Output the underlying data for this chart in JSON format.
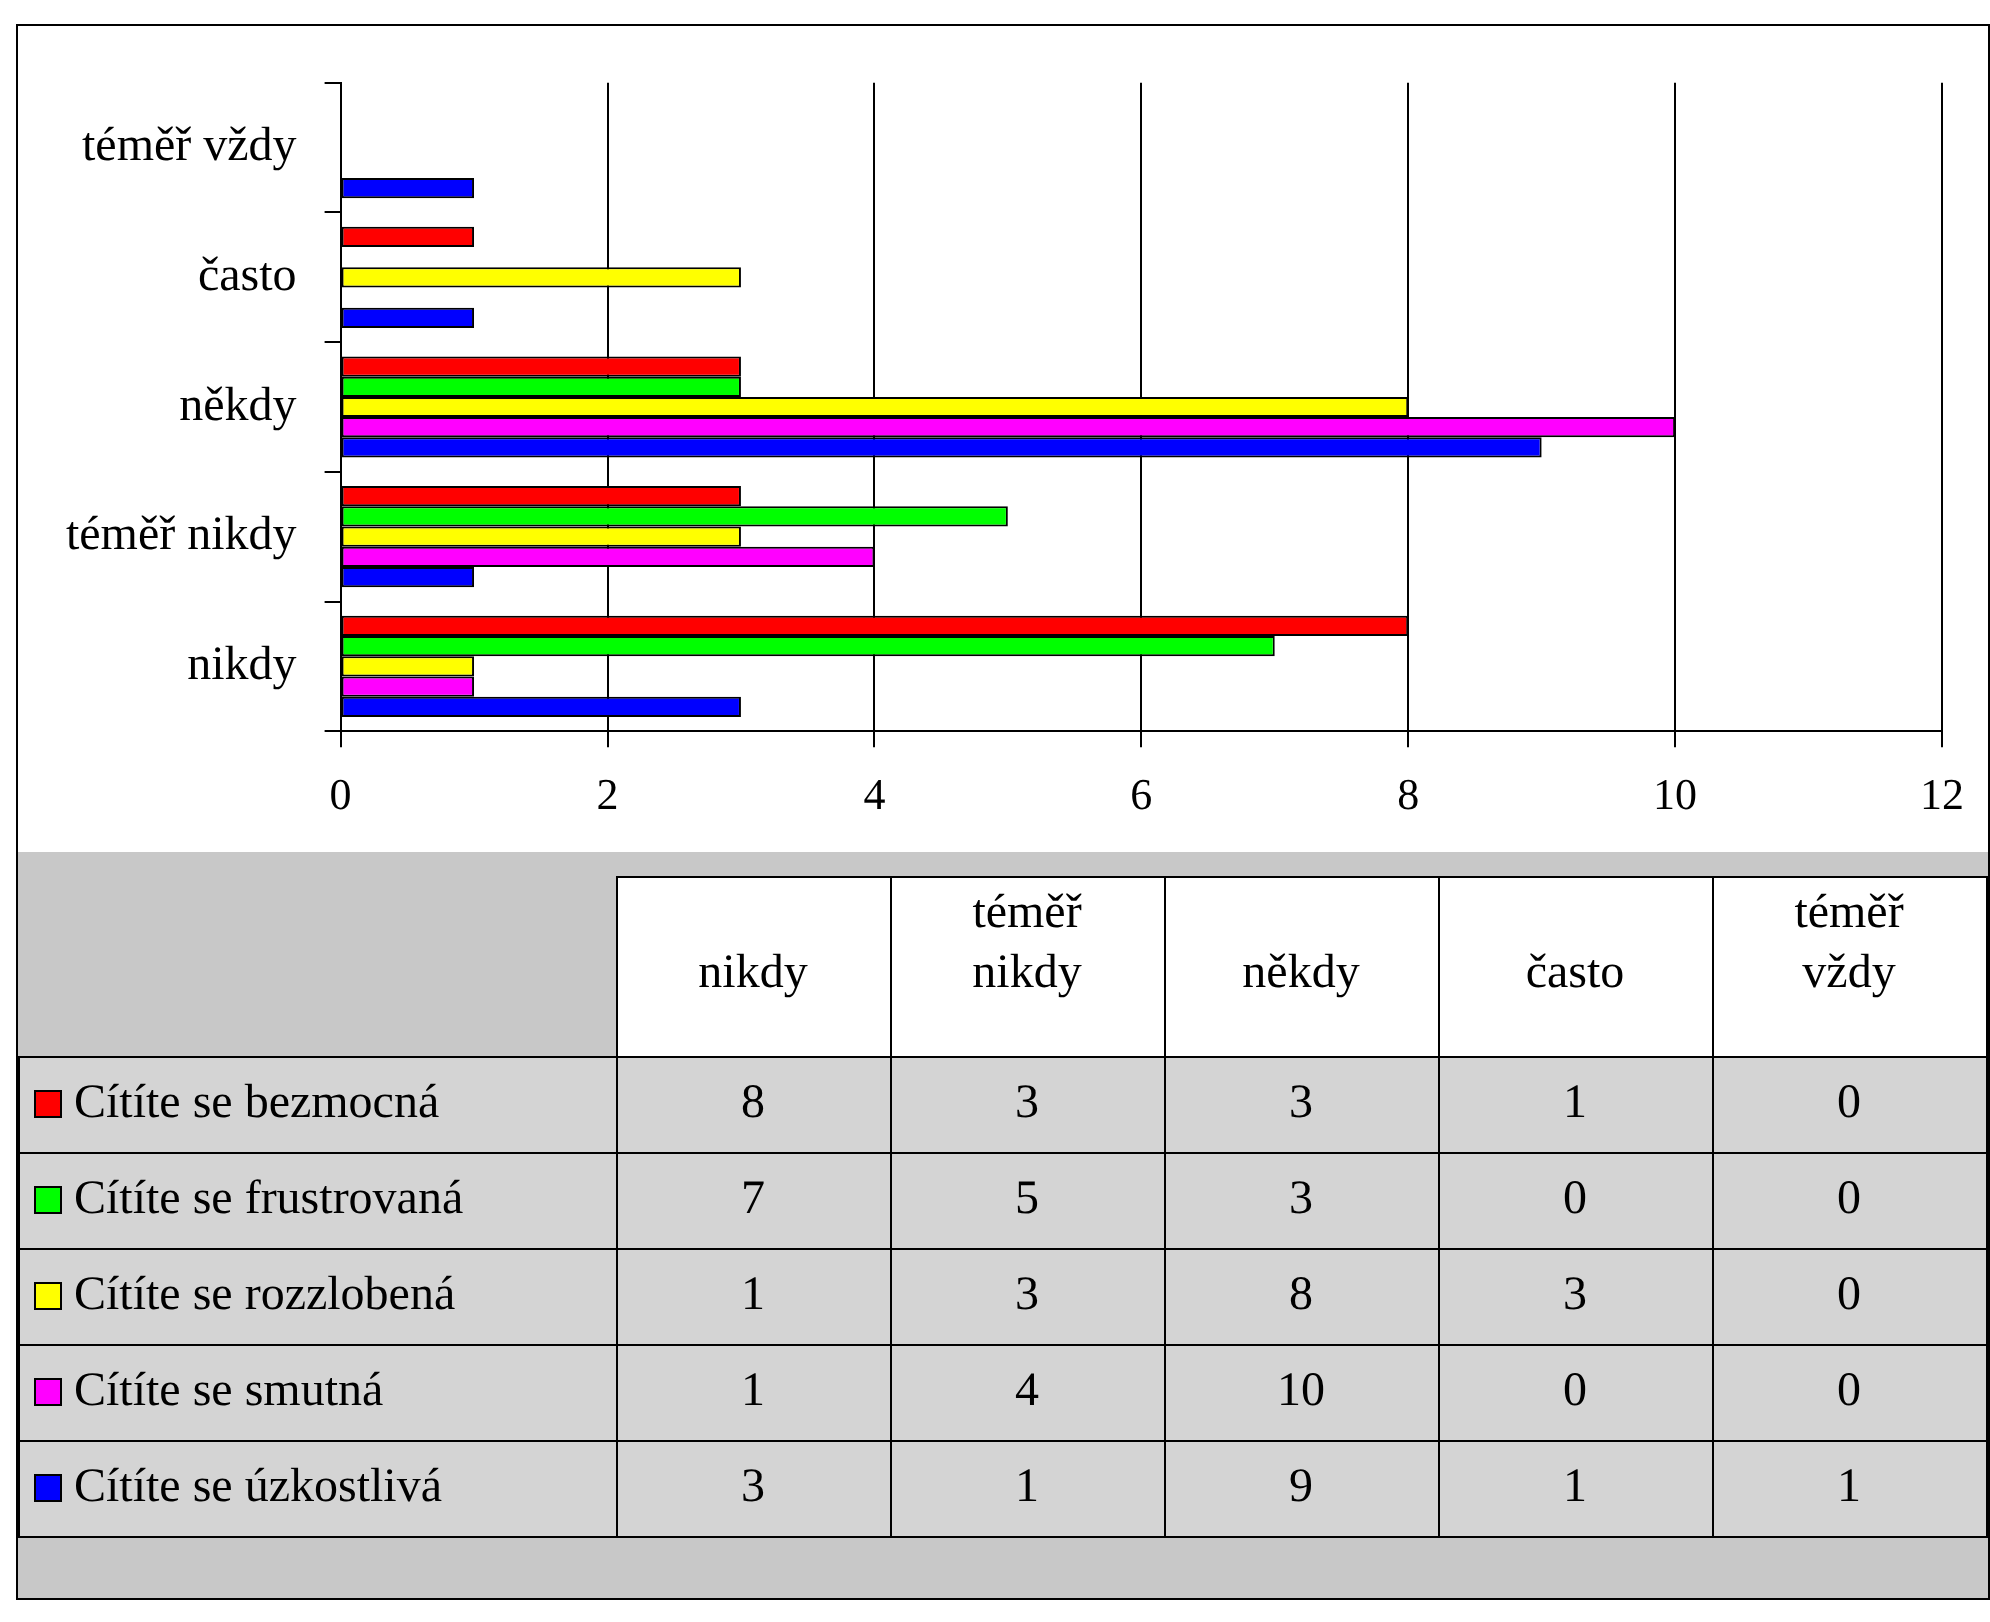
{
  "chart_data": [
    {
      "type": "bar",
      "orientation": "horizontal",
      "categories": [
        "téměř vždy",
        "často",
        "někdy",
        "téměř nikdy",
        "nikdy"
      ],
      "series": [
        {
          "color": "#ff0000",
          "values": [
            0,
            1,
            3,
            3,
            8
          ]
        },
        {
          "color": "#00ff00",
          "values": [
            0,
            0,
            3,
            5,
            7
          ]
        },
        {
          "color": "#ffff00",
          "values": [
            0,
            3,
            8,
            3,
            1
          ]
        },
        {
          "color": "#ff00ff",
          "values": [
            0,
            0,
            10,
            4,
            1
          ]
        },
        {
          "color": "#0000ff",
          "values": [
            1,
            1,
            9,
            1,
            3
          ]
        }
      ],
      "xlim": [
        0,
        12
      ],
      "xticks": [
        0,
        2,
        4,
        6,
        8,
        10,
        12
      ],
      "grid": "x"
    },
    {
      "type": "heatmap",
      "categories": [
        "nikdy",
        "téměř nikdy",
        "někdy",
        "často",
        "téměř vždy"
      ],
      "y_categories": [
        "Cítíte se bezmocná",
        "Cítíte se frustrovaná",
        "Cítíte se rozzlobená",
        "Cítíte se smutná",
        "Cítíte se úzkostlivá"
      ],
      "cells": [
        [
          8,
          3,
          3,
          1,
          0
        ],
        [
          7,
          5,
          3,
          0,
          0
        ],
        [
          1,
          3,
          8,
          3,
          0
        ],
        [
          1,
          4,
          10,
          0,
          0
        ],
        [
          3,
          1,
          9,
          1,
          1
        ]
      ],
      "data_labels": true
    }
  ]
}
